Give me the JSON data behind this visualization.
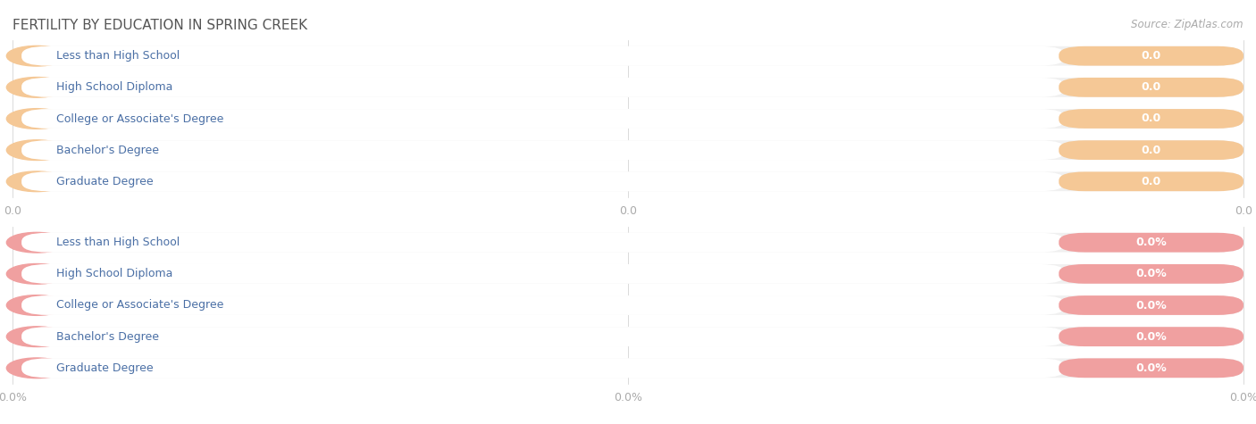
{
  "title": "FERTILITY BY EDUCATION IN SPRING CREEK",
  "source": "Source: ZipAtlas.com",
  "categories": [
    "Less than High School",
    "High School Diploma",
    "College or Associate's Degree",
    "Bachelor's Degree",
    "Graduate Degree"
  ],
  "values_top": [
    0.0,
    0.0,
    0.0,
    0.0,
    0.0
  ],
  "values_bottom": [
    0.0,
    0.0,
    0.0,
    0.0,
    0.0
  ],
  "bar_color_top": "#f5c896",
  "bar_bg_top": "#f5c896",
  "bar_color_bottom": "#f0a0a0",
  "bar_bg_bottom": "#f0a0a0",
  "label_text_color": "#4a6fa5",
  "value_text_color_top": "#c8966e",
  "value_text_color_bottom": "#c06060",
  "axis_tick_color": "#aaaaaa",
  "background_color": "#ffffff",
  "row_bg_color": "#f0f0f0",
  "title_color": "#555555",
  "source_color": "#aaaaaa",
  "title_fontsize": 11,
  "label_fontsize": 9,
  "value_fontsize": 9,
  "source_fontsize": 8.5,
  "tick_fontsize": 9
}
